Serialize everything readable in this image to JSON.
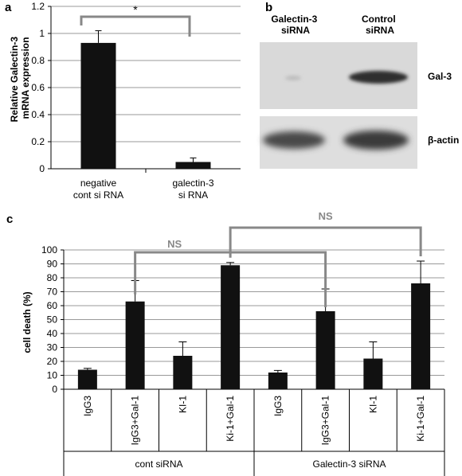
{
  "panels": {
    "a": "a",
    "b": "b",
    "c": "c"
  },
  "chart_data": [
    {
      "panel": "a",
      "type": "bar",
      "ylabel": "Relative Galectin-3 mRNA expression",
      "ylim": [
        0,
        1.2
      ],
      "yticks": [
        "0",
        "0.2",
        "0.4",
        "0.6",
        "0.8",
        "1",
        "1.2"
      ],
      "categories": [
        "negative cont si RNA",
        "galectin-3 si RNA"
      ],
      "values": [
        0.93,
        0.05
      ],
      "errors": [
        0.09,
        0.03
      ],
      "significance": "*",
      "grid": true
    },
    {
      "panel": "c",
      "type": "bar",
      "ylabel": "cell death (%)",
      "ylim": [
        0,
        100
      ],
      "yticks": [
        "0",
        "10",
        "20",
        "30",
        "40",
        "50",
        "60",
        "70",
        "80",
        "90",
        "100"
      ],
      "categories": [
        "IgG3",
        "IgG3+Gal-1",
        "KI-1",
        "Ki-1+Gal-1",
        "IgG3",
        "IgG3+Gal-1",
        "KI-1",
        "Ki-1+Gal-1"
      ],
      "values": [
        14,
        63,
        24,
        89,
        12,
        56,
        22,
        76
      ],
      "errors": [
        1,
        15,
        10,
        2,
        1.5,
        16,
        12,
        16
      ],
      "groups": [
        "cont siRNA",
        "Galectin-3 siRNA"
      ],
      "comparisons": [
        "NS",
        "NS"
      ],
      "grid": true
    }
  ],
  "blot": {
    "columns": [
      "Galectin-3 siRNA",
      "Control siRNA"
    ],
    "bands": [
      "Gal-3",
      "β-actin"
    ]
  }
}
